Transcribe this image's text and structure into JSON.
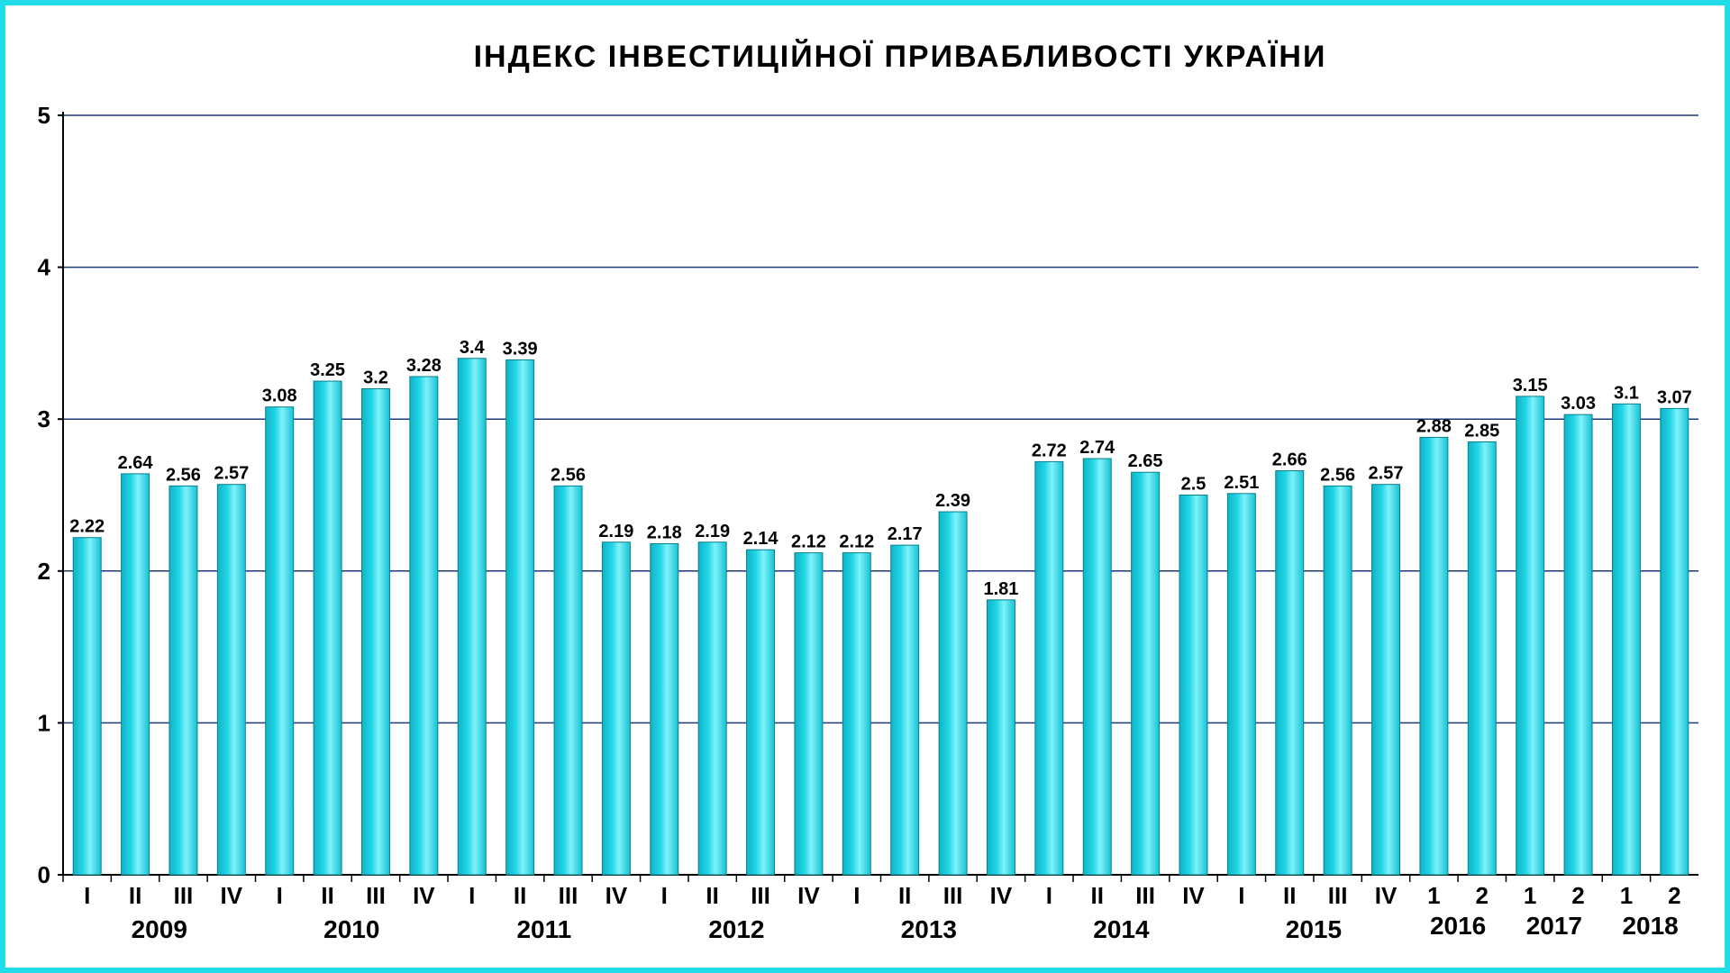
{
  "chart_data": {
    "type": "bar",
    "title": "ІНДЕКС ІНВЕСТИЦІЙНОЇ ПРИВАБЛИВОСТІ УКРАЇНИ",
    "xlabel": "",
    "ylabel": "",
    "ylim": [
      0,
      5
    ],
    "yticks": [
      "0",
      "1",
      "2",
      "3",
      "4",
      "5"
    ],
    "grid": true,
    "bar_color": "#22d6e6",
    "categories": [
      "I",
      "II",
      "III",
      "IV",
      "I",
      "II",
      "III",
      "IV",
      "I",
      "II",
      "III",
      "IV",
      "I",
      "II",
      "III",
      "IV",
      "I",
      "II",
      "III",
      "IV",
      "I",
      "II",
      "III",
      "IV",
      "I",
      "II",
      "III",
      "IV",
      "1",
      "2",
      "1",
      "2",
      "1",
      "2"
    ],
    "data_labels": [
      "2.22",
      "2.64",
      "2.56",
      "2.57",
      "3.08",
      "3.25",
      "3.2",
      "3.28",
      "3.4",
      "3.39",
      "2.56",
      "2.19",
      "2.18",
      "2.19",
      "2.14",
      "2.12",
      "2.12",
      "2.17",
      "2.39",
      "1.81",
      "2.72",
      "2.74",
      "2.65",
      "2.5",
      "2.51",
      "2.66",
      "2.56",
      "2.57",
      "2.88",
      "2.85",
      "3.15",
      "3.03",
      "3.1",
      "3.07"
    ],
    "values": [
      2.22,
      2.64,
      2.56,
      2.57,
      3.08,
      3.25,
      3.2,
      3.28,
      3.4,
      3.39,
      2.56,
      2.19,
      2.18,
      2.19,
      2.14,
      2.12,
      2.12,
      2.17,
      2.39,
      1.81,
      2.72,
      2.74,
      2.65,
      2.5,
      2.51,
      2.66,
      2.56,
      2.57,
      2.88,
      2.85,
      3.15,
      3.03,
      3.1,
      3.07
    ],
    "groups": [
      {
        "label": "2009",
        "start": 0,
        "count": 4
      },
      {
        "label": "2010",
        "start": 4,
        "count": 4
      },
      {
        "label": "2011",
        "start": 8,
        "count": 4
      },
      {
        "label": "2012",
        "start": 12,
        "count": 4
      },
      {
        "label": "2013",
        "start": 16,
        "count": 4
      },
      {
        "label": "2014",
        "start": 20,
        "count": 4
      },
      {
        "label": "2015",
        "start": 24,
        "count": 4
      },
      {
        "label": "2016",
        "start": 28,
        "count": 2
      },
      {
        "label": "2017",
        "start": 30,
        "count": 2
      },
      {
        "label": "2018",
        "start": 32,
        "count": 2
      }
    ]
  }
}
